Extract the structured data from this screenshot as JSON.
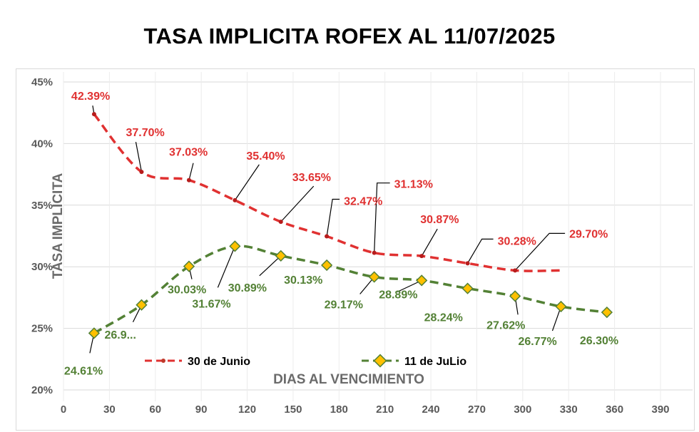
{
  "chart_data": {
    "type": "line",
    "title": "TASA IMPLICITA ROFEX AL 11/07/2025",
    "xlabel": "DIAS AL VENCIMIENTO",
    "ylabel": "TASA IMPLICITA",
    "xlim": [
      0,
      390
    ],
    "ylim": [
      20,
      45
    ],
    "xticks": [
      "0",
      "30",
      "60",
      "90",
      "120",
      "150",
      "180",
      "210",
      "240",
      "270",
      "300",
      "330",
      "360",
      "390"
    ],
    "yticks": [
      "20%",
      "25%",
      "30%",
      "35%",
      "40%",
      "45%"
    ],
    "legend_position": "bottom-left inside plot",
    "grid": "horizontal and vertical gridlines",
    "series": [
      {
        "name": "30 de Junio",
        "color": "#e03131",
        "line_style": "dashed",
        "x": [
          20,
          51,
          82,
          112,
          142,
          172,
          203,
          234,
          264,
          295,
          325
        ],
        "values": [
          42.39,
          37.7,
          37.03,
          35.4,
          33.65,
          32.47,
          31.13,
          30.87,
          30.28,
          29.7,
          29.7
        ],
        "point_x": [
          20,
          51,
          82,
          112,
          142,
          172,
          203,
          234,
          264,
          295
        ],
        "point_values": [
          42.39,
          37.7,
          37.03,
          35.4,
          33.65,
          32.47,
          31.13,
          30.87,
          30.28,
          29.7
        ],
        "labels": [
          "42.39%",
          "37.70%",
          "37.03%",
          "35.40%",
          "33.65%",
          "32.47%",
          "31.13%",
          "30.87%",
          "30.28%",
          "29.70%"
        ]
      },
      {
        "name": "11 de JuLio",
        "color": "#538135",
        "marker_color": "#ffc000",
        "line_style": "dashed",
        "x": [
          20,
          51,
          82,
          112,
          142,
          172,
          203,
          234,
          264,
          295,
          325,
          355
        ],
        "values": [
          24.61,
          26.9,
          30.03,
          31.67,
          30.89,
          30.13,
          29.17,
          28.89,
          28.24,
          27.62,
          26.77,
          26.3
        ],
        "labels": [
          "24.61%",
          "26.9...",
          "30.03%",
          "31.67%",
          "30.89%",
          "30.13%",
          "29.17%",
          "28.89%",
          "28.24%",
          "27.62%",
          "26.77%",
          "26.30%"
        ]
      }
    ]
  }
}
